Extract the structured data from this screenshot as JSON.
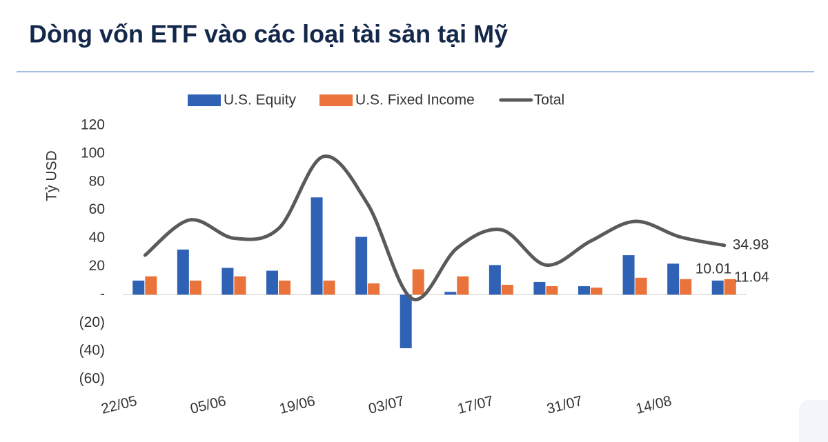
{
  "chart_data": {
    "type": "bar-line",
    "title": "Dòng vốn ETF vào các loại tài sản tại Mỹ",
    "y_label": "Tỷ USD",
    "categories": [
      "22/05",
      null,
      "05/06",
      null,
      "19/06",
      null,
      "03/07",
      null,
      "17/07",
      null,
      "31/07",
      null,
      "14/08",
      null
    ],
    "series": [
      {
        "name": "U.S. Equity",
        "type": "bar",
        "color": "#2f62b5",
        "values": [
          10,
          32,
          19,
          17,
          69,
          41,
          -38,
          2,
          21,
          9,
          6,
          28,
          22,
          10.01
        ]
      },
      {
        "name": "U.S. Fixed Income",
        "type": "bar",
        "color": "#e9733a",
        "values": [
          13,
          10,
          13,
          10,
          10,
          8,
          18,
          13,
          7,
          6,
          5,
          12,
          11,
          11.04
        ]
      },
      {
        "name": "Total",
        "type": "line",
        "color": "#5a5a5a",
        "values": [
          28,
          53,
          40,
          47,
          98,
          64,
          -3,
          33,
          46,
          21,
          38,
          52,
          41,
          34.98
        ]
      }
    ],
    "labeled_points": [
      [
        0,
        13
      ],
      [
        1,
        13
      ],
      [
        2,
        13
      ]
    ],
    "ylim": [
      -60,
      120
    ],
    "yticks": [
      {
        "value": -60,
        "label": "(60)"
      },
      {
        "value": -40,
        "label": "(40)"
      },
      {
        "value": -20,
        "label": "(20)"
      },
      {
        "value": 0,
        "label": "-"
      },
      20,
      40,
      60,
      80,
      100,
      120
    ]
  }
}
